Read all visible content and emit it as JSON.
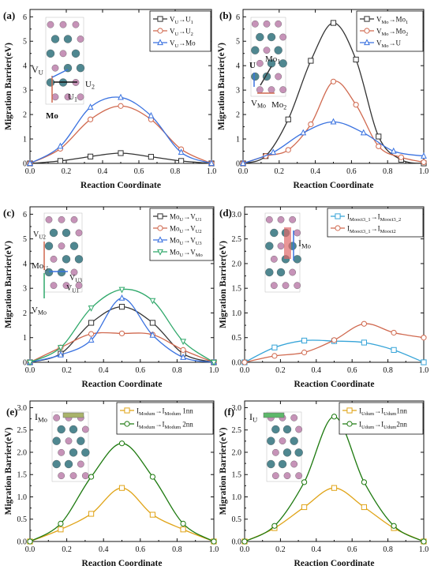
{
  "figure": {
    "panels": [
      {
        "id": "a",
        "label": "(a)",
        "xlabel": "Reaction Coordinate",
        "ylabel": "Migration Barrier(eV)"
      },
      {
        "id": "b",
        "label": "(b)",
        "xlabel": "Reaction Coordinate",
        "ylabel": "Migration Barrier(eV)"
      },
      {
        "id": "c",
        "label": "(c)",
        "xlabel": "Reaction Coordinate",
        "ylabel": "Migration Barrier(eV)"
      },
      {
        "id": "d",
        "label": "(d)",
        "xlabel": "Reaction Coordinate",
        "ylabel": "Migration Barrier(eV)"
      },
      {
        "id": "e",
        "label": "(e)",
        "xlabel": "Reaction Coordinate",
        "ylabel": "Migration Barrier(eV)"
      },
      {
        "id": "f",
        "label": "(f)",
        "xlabel": "Reaction Coordinate",
        "ylabel": "Migration Barrier(eV)"
      }
    ],
    "insets": {
      "a": {
        "atom_labels": [
          "V",
          "U",
          "U",
          "U",
          "Mo"
        ]
      },
      "b": {
        "atom_labels": [
          "U",
          "Mo",
          "V",
          "Mo"
        ]
      },
      "c": {
        "atom_labels": [
          "V",
          "Mo",
          "V",
          "V",
          "V"
        ]
      },
      "d": {
        "atom_labels": [
          "I",
          "Mo"
        ]
      },
      "e": {
        "atom_labels": [
          "I",
          "Mo"
        ]
      },
      "f": {
        "atom_labels": [
          "I"
        ]
      }
    },
    "colors": {
      "black": "#333333",
      "red": "#d0694f",
      "blue": "#3a72e0",
      "green": "#2fa86a",
      "dkgreen": "#1e7a10",
      "gold": "#e0a418",
      "cyan": "#36a4d8",
      "atom_teal": "#4f8790",
      "atom_pink": "#c693b8",
      "atom_light": "#dddddd"
    }
  },
  "chart_data": [
    {
      "panel": "a",
      "type": "line",
      "xlabel": "Reaction Coordinate",
      "ylabel": "Migration Barrier(eV)",
      "xlim": [
        0.0,
        1.0
      ],
      "ylim": [
        0,
        6.3
      ],
      "xticks": [
        "0.0",
        "0.2",
        "0.4",
        "0.6",
        "0.8",
        "1.0"
      ],
      "yticks": [
        "0",
        "1",
        "2",
        "3",
        "4",
        "5",
        "6"
      ],
      "legend_position": "top-right",
      "series": [
        {
          "name": "VU→U1",
          "legend": {
            "sym": "V",
            "sub": "U",
            "arrow": "→",
            "sym2": "U",
            "sub2": "1"
          },
          "color": "#333333",
          "marker": "square",
          "x": [
            0,
            0.167,
            0.333,
            0.5,
            0.667,
            0.833,
            1.0
          ],
          "y": [
            0,
            0.1,
            0.28,
            0.42,
            0.27,
            0.1,
            0
          ]
        },
        {
          "name": "VU→U2",
          "legend": {
            "sym": "V",
            "sub": "U",
            "arrow": "→",
            "sym2": "U",
            "sub2": "2"
          },
          "color": "#d0694f",
          "marker": "circle",
          "x": [
            0,
            0.167,
            0.333,
            0.5,
            0.667,
            0.833,
            1.0
          ],
          "y": [
            0,
            0.6,
            1.8,
            2.35,
            1.8,
            0.58,
            0
          ]
        },
        {
          "name": "VU→Mo",
          "legend": {
            "sym": "V",
            "sub": "U",
            "arrow": "→",
            "sym2": "Mo",
            "sub2": ""
          },
          "color": "#3a72e0",
          "marker": "triangle",
          "x": [
            0,
            0.167,
            0.333,
            0.5,
            0.667,
            0.833,
            1.0
          ],
          "y": [
            0,
            0.7,
            2.3,
            2.7,
            1.95,
            0.45,
            0
          ]
        }
      ]
    },
    {
      "panel": "b",
      "type": "line",
      "xlabel": "Reaction Coordinate",
      "ylabel": "Migration Barrier(eV)",
      "xlim": [
        0.0,
        1.0
      ],
      "ylim": [
        0,
        6.3
      ],
      "xticks": [
        "0.0",
        "0.2",
        "0.4",
        "0.6",
        "0.8",
        "1.0"
      ],
      "yticks": [
        "0",
        "1",
        "2",
        "3",
        "4",
        "5",
        "6"
      ],
      "legend_position": "top-right",
      "series": [
        {
          "name": "VMo→Mo1",
          "legend": {
            "sym": "V",
            "sub": "Mo",
            "arrow": "→",
            "sym2": "Mo",
            "sub2": "1"
          },
          "color": "#333333",
          "marker": "square",
          "x": [
            0,
            0.125,
            0.25,
            0.375,
            0.5,
            0.625,
            0.75,
            0.875,
            1.0
          ],
          "y": [
            0,
            0.3,
            1.8,
            4.2,
            5.75,
            4.25,
            1.1,
            0.15,
            0
          ]
        },
        {
          "name": "VMo→Mo2",
          "legend": {
            "sym": "V",
            "sub": "Mo",
            "arrow": "→",
            "sym2": "Mo",
            "sub2": "2"
          },
          "color": "#d0694f",
          "marker": "circle",
          "x": [
            0,
            0.125,
            0.25,
            0.375,
            0.5,
            0.625,
            0.75,
            0.875,
            1.0
          ],
          "y": [
            0,
            0.3,
            0.55,
            1.6,
            3.35,
            2.4,
            0.7,
            0.25,
            0.05
          ]
        },
        {
          "name": "VMo→U",
          "legend": {
            "sym": "V",
            "sub": "Mo",
            "arrow": "→",
            "sym2": "U",
            "sub2": ""
          },
          "color": "#3a72e0",
          "marker": "triangle",
          "x": [
            0,
            0.167,
            0.333,
            0.5,
            0.667,
            0.833,
            1.0
          ],
          "y": [
            0,
            0.45,
            1.25,
            1.7,
            1.25,
            0.5,
            0.3
          ]
        }
      ]
    },
    {
      "panel": "c",
      "type": "line",
      "xlabel": "Reaction Coordinate",
      "ylabel": "Migration Barrier(eV)",
      "xlim": [
        0.0,
        1.0
      ],
      "ylim": [
        0,
        6.3
      ],
      "xticks": [
        "0.0",
        "0.2",
        "0.4",
        "0.6",
        "0.8",
        "1.0"
      ],
      "yticks": [
        "0",
        "1",
        "2",
        "3",
        "4",
        "5",
        "6"
      ],
      "legend_position": "top-right",
      "series": [
        {
          "name": "MoU→VU1",
          "legend": {
            "sym": "Mo",
            "sub": "U",
            "arrow": "→",
            "sym2": "V",
            "sub2": "U1"
          },
          "color": "#333333",
          "marker": "square",
          "x": [
            0,
            0.167,
            0.333,
            0.5,
            0.667,
            0.833,
            1.0
          ],
          "y": [
            0,
            0.35,
            1.6,
            2.25,
            1.6,
            0.35,
            0
          ]
        },
        {
          "name": "MoU→VU2",
          "legend": {
            "sym": "Mo",
            "sub": "U",
            "arrow": "→",
            "sym2": "V",
            "sub2": "U2"
          },
          "color": "#d0694f",
          "marker": "circle",
          "x": [
            0,
            0.167,
            0.333,
            0.5,
            0.667,
            0.833,
            1.0
          ],
          "y": [
            0,
            0.6,
            1.15,
            1.17,
            1.12,
            0.5,
            0
          ]
        },
        {
          "name": "MoU→VU3",
          "legend": {
            "sym": "Mo",
            "sub": "U",
            "arrow": "→",
            "sym2": "V",
            "sub2": "U3"
          },
          "color": "#3a72e0",
          "marker": "triangle",
          "x": [
            0,
            0.167,
            0.333,
            0.5,
            0.667,
            0.833,
            1.0
          ],
          "y": [
            0,
            0.3,
            0.9,
            2.6,
            1.1,
            0.2,
            0
          ]
        },
        {
          "name": "MoU→VMo",
          "legend": {
            "sym": "Mo",
            "sub": "U",
            "arrow": "→",
            "sym2": "V",
            "sub2": "Mo"
          },
          "color": "#2fa86a",
          "marker": "triangle-down",
          "x": [
            0,
            0.167,
            0.333,
            0.5,
            0.667,
            0.833,
            1.0
          ],
          "y": [
            0,
            0.6,
            2.2,
            2.95,
            2.5,
            0.85,
            0
          ]
        }
      ]
    },
    {
      "panel": "d",
      "type": "line",
      "xlabel": "Reaction Coordinate",
      "ylabel": "Migration Barrier(eV)",
      "xlim": [
        0.0,
        1.0
      ],
      "ylim": [
        0,
        3.15
      ],
      "xticks": [
        "0.0",
        "0.2",
        "0.4",
        "0.6",
        "0.8",
        "1.0"
      ],
      "yticks": [
        "0.0",
        "0.5",
        "1.0",
        "1.5",
        "2.0",
        "2.5",
        "3.0"
      ],
      "legend_position": "top-right",
      "series": [
        {
          "name": "IMooct3_1→IMooct3_2",
          "legend": {
            "sym": "I",
            "sub": "Mooct3_1",
            "arrow": "→",
            "sym2": "I",
            "sub2": "Mooct3_2"
          },
          "color": "#36a4d8",
          "marker": "square",
          "x": [
            0,
            0.167,
            0.333,
            0.5,
            0.667,
            0.833,
            1.0
          ],
          "y": [
            0,
            0.3,
            0.44,
            0.43,
            0.4,
            0.25,
            0
          ]
        },
        {
          "name": "IMooct3_1→IMooct2",
          "legend": {
            "sym": "I",
            "sub": "Mooct3_1",
            "arrow": "→",
            "sym2": "I",
            "sub2": "Mooct2"
          },
          "color": "#d0694f",
          "marker": "circle",
          "x": [
            0,
            0.167,
            0.333,
            0.5,
            0.667,
            0.833,
            1.0
          ],
          "y": [
            0,
            0.13,
            0.2,
            0.45,
            0.78,
            0.6,
            0.5
          ]
        }
      ]
    },
    {
      "panel": "e",
      "type": "line",
      "xlabel": "Reaction Coordinate",
      "ylabel": "Migration Barrier(eV)",
      "xlim": [
        0.0,
        1.0
      ],
      "ylim": [
        0,
        3.15
      ],
      "xticks": [
        "0.0",
        "0.2",
        "0.4",
        "0.6",
        "0.8",
        "1.0"
      ],
      "yticks": [
        "0.0",
        "0.5",
        "1.0",
        "1.5",
        "2.0",
        "2.5",
        "3.0"
      ],
      "legend_position": "top-right",
      "series": [
        {
          "name": "IModum→IModum 1nn",
          "legend": {
            "sym": "I",
            "sub": "Modum",
            "arrow": "→",
            "sym2": "I",
            "sub2": "Modum",
            "suffix": " 1nn"
          },
          "color": "#e0a418",
          "marker": "square",
          "x": [
            0,
            0.167,
            0.333,
            0.5,
            0.667,
            0.833,
            1.0
          ],
          "y": [
            0,
            0.27,
            0.62,
            1.2,
            0.6,
            0.27,
            0
          ]
        },
        {
          "name": "IModum→IModum 2nn",
          "legend": {
            "sym": "I",
            "sub": "Modum",
            "arrow": "→",
            "sym2": "I",
            "sub2": "Modum",
            "suffix": " 2nn"
          },
          "color": "#1e7a10",
          "marker": "circle",
          "x": [
            0,
            0.167,
            0.333,
            0.5,
            0.667,
            0.833,
            1.0
          ],
          "y": [
            0,
            0.4,
            1.45,
            2.2,
            1.45,
            0.4,
            0
          ]
        }
      ]
    },
    {
      "panel": "f",
      "type": "line",
      "xlabel": "Reaction Coordinate",
      "ylabel": "Migration Barrier(eV)",
      "xlim": [
        0.0,
        1.0
      ],
      "ylim": [
        0,
        3.15
      ],
      "xticks": [
        "0.0",
        "0.2",
        "0.4",
        "0.6",
        "0.8",
        "1.0"
      ],
      "yticks": [
        "0.0",
        "0.5",
        "1.0",
        "1.5",
        "2.0",
        "2.5",
        "3.0"
      ],
      "legend_position": "top-right",
      "series": [
        {
          "name": "IUdum→IUdum1nn",
          "legend": {
            "sym": "I",
            "sub": "Udum",
            "arrow": "→",
            "sym2": "I",
            "sub2": "Udum",
            "suffix": "1nn"
          },
          "color": "#e0a418",
          "marker": "square",
          "x": [
            0,
            0.167,
            0.333,
            0.5,
            0.667,
            0.833,
            1.0
          ],
          "y": [
            0,
            0.3,
            0.77,
            1.2,
            0.77,
            0.3,
            0
          ]
        },
        {
          "name": "IUdum→IUdum2nn",
          "legend": {
            "sym": "I",
            "sub": "Udum",
            "arrow": "→",
            "sym2": "I",
            "sub2": "Udum",
            "suffix": "2nn"
          },
          "color": "#1e7a10",
          "marker": "circle",
          "x": [
            0,
            0.167,
            0.333,
            0.5,
            0.667,
            0.833,
            1.0
          ],
          "y": [
            0,
            0.35,
            1.33,
            2.8,
            1.33,
            0.35,
            0
          ]
        }
      ]
    }
  ]
}
